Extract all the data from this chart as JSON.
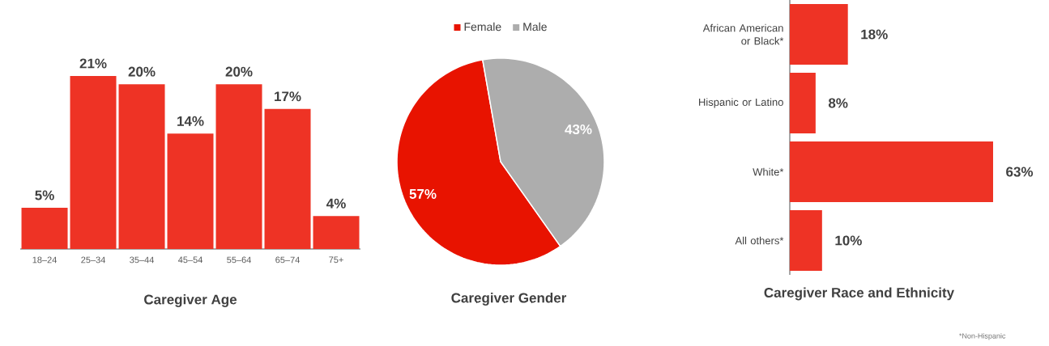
{
  "chart_data": [
    {
      "type": "bar",
      "title": "Caregiver Age",
      "categories": [
        "18–24",
        "25–34",
        "35–44",
        "45–54",
        "55–64",
        "65–74",
        "75+"
      ],
      "values": [
        5,
        21,
        20,
        14,
        20,
        17,
        4
      ],
      "value_labels": [
        "5%",
        "21%",
        "20%",
        "14%",
        "20%",
        "17%",
        "4%"
      ],
      "color": "#ee3325",
      "tick_labels": "x"
    },
    {
      "type": "pie",
      "title": "Caregiver Gender",
      "categories": [
        "Female",
        "Male"
      ],
      "values": [
        57,
        43
      ],
      "colors": [
        "#e81300",
        "#adadad"
      ],
      "value_labels": [
        "57%",
        "43%"
      ],
      "legend": "top"
    },
    {
      "type": "bar",
      "orientation": "horizontal",
      "title": "Caregiver Race and Ethnicity",
      "categories": [
        "African American or Black*",
        "Hispanic or Latino",
        "White*",
        "All others*"
      ],
      "values": [
        18,
        8,
        63,
        10
      ],
      "value_labels": [
        "18%",
        "8%",
        "63%",
        "10%"
      ],
      "color": "#ee3325",
      "tick_labels": "y",
      "annotations": [
        "*Non-Hispanic"
      ]
    }
  ]
}
